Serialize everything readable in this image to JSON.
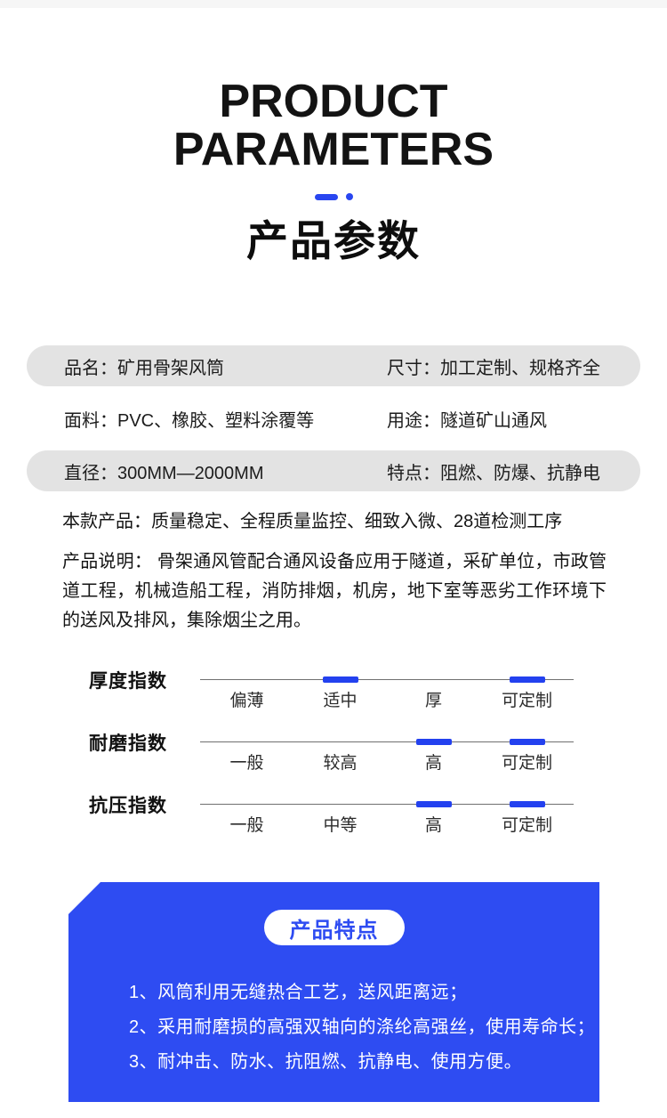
{
  "header": {
    "title_en_line1": "PRODUCT",
    "title_en_line2": "PARAMETERS",
    "title_cn": "产品参数"
  },
  "params": {
    "rows": [
      {
        "left": "品名：矿用骨架风筒",
        "right": "尺寸：加工定制、规格齐全",
        "shaded": true
      },
      {
        "left": "面料：PVC、橡胶、塑料涂覆等",
        "right": "用途：隧道矿山通风",
        "shaded": false
      },
      {
        "left": "直径：300MM—2000MM",
        "right": "特点：阻燃、防爆、抗静电",
        "shaded": true
      }
    ]
  },
  "summary": "本款产品：质量稳定、全程质量监控、细致入微、28道检测工序",
  "description": "产品说明： 骨架通风管配合通风设备应用于隧道，采矿单位，市政管道工程，机械造船工程，消防排烟，机房，地下室等恶劣工作环境下的送风及排风，集除烟尘之用。",
  "indices": [
    {
      "label": "厚度指数",
      "stops": [
        "偏薄",
        "适中",
        "厚",
        "可定制"
      ],
      "active": [
        1,
        3
      ]
    },
    {
      "label": "耐磨指数",
      "stops": [
        "一般",
        "较高",
        "高",
        "可定制"
      ],
      "active": [
        2,
        3
      ]
    },
    {
      "label": "抗压指数",
      "stops": [
        "一般",
        "中等",
        "高",
        "可定制"
      ],
      "active": [
        2,
        3
      ]
    }
  ],
  "features": {
    "badge": "产品特点",
    "items": [
      "1、风筒利用无缝热合工艺，送风距离远；",
      "2、采用耐磨损的高强双轴向的涤纶高强丝，使用寿命长；",
      "3、耐冲击、防水、抗阻燃、抗静电、使用方便。"
    ]
  },
  "colors": {
    "accent_blue": "#2946f0",
    "marker_blue": "#2341ef",
    "feature_box_blue": "#2e4cf2",
    "row_gray": "#e3e3e3",
    "top_strip_gray": "#f6f6f6",
    "text_dark": "#141414"
  }
}
